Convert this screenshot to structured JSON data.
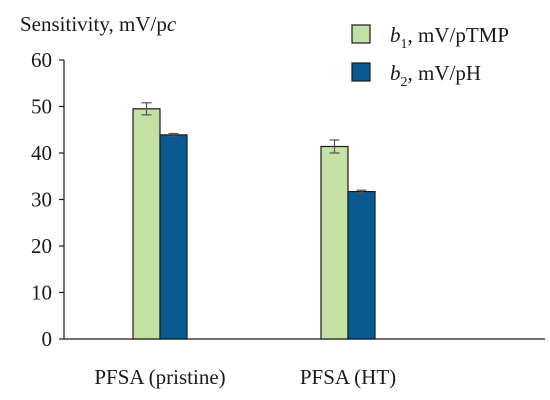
{
  "chart_data": {
    "type": "bar",
    "ylabel_prefix": "Sensitivity, mV/p",
    "ylabel_italic": "c",
    "categories": [
      "PFSA (pristine)",
      "PFSA (HT)"
    ],
    "ylim": [
      0,
      60
    ],
    "yticks": [
      "0",
      "10",
      "20",
      "30",
      "40",
      "50",
      "60"
    ],
    "ytick_values": [
      0,
      10,
      20,
      30,
      40,
      50,
      60
    ],
    "grid": false,
    "legend_position": "top-right",
    "series": [
      {
        "name_symbol": "b",
        "name_sub": "1",
        "name_unit": ", mV/pTMP",
        "color": "#c5e0a5",
        "values": [
          49.5,
          41.4
        ],
        "errors": [
          1.3,
          1.4
        ]
      },
      {
        "name_symbol": "b",
        "name_sub": "2",
        "name_unit": ", mV/pH",
        "color": "#0a5a92",
        "values": [
          43.9,
          31.7
        ],
        "errors": [
          0.3,
          0.3
        ]
      }
    ]
  }
}
